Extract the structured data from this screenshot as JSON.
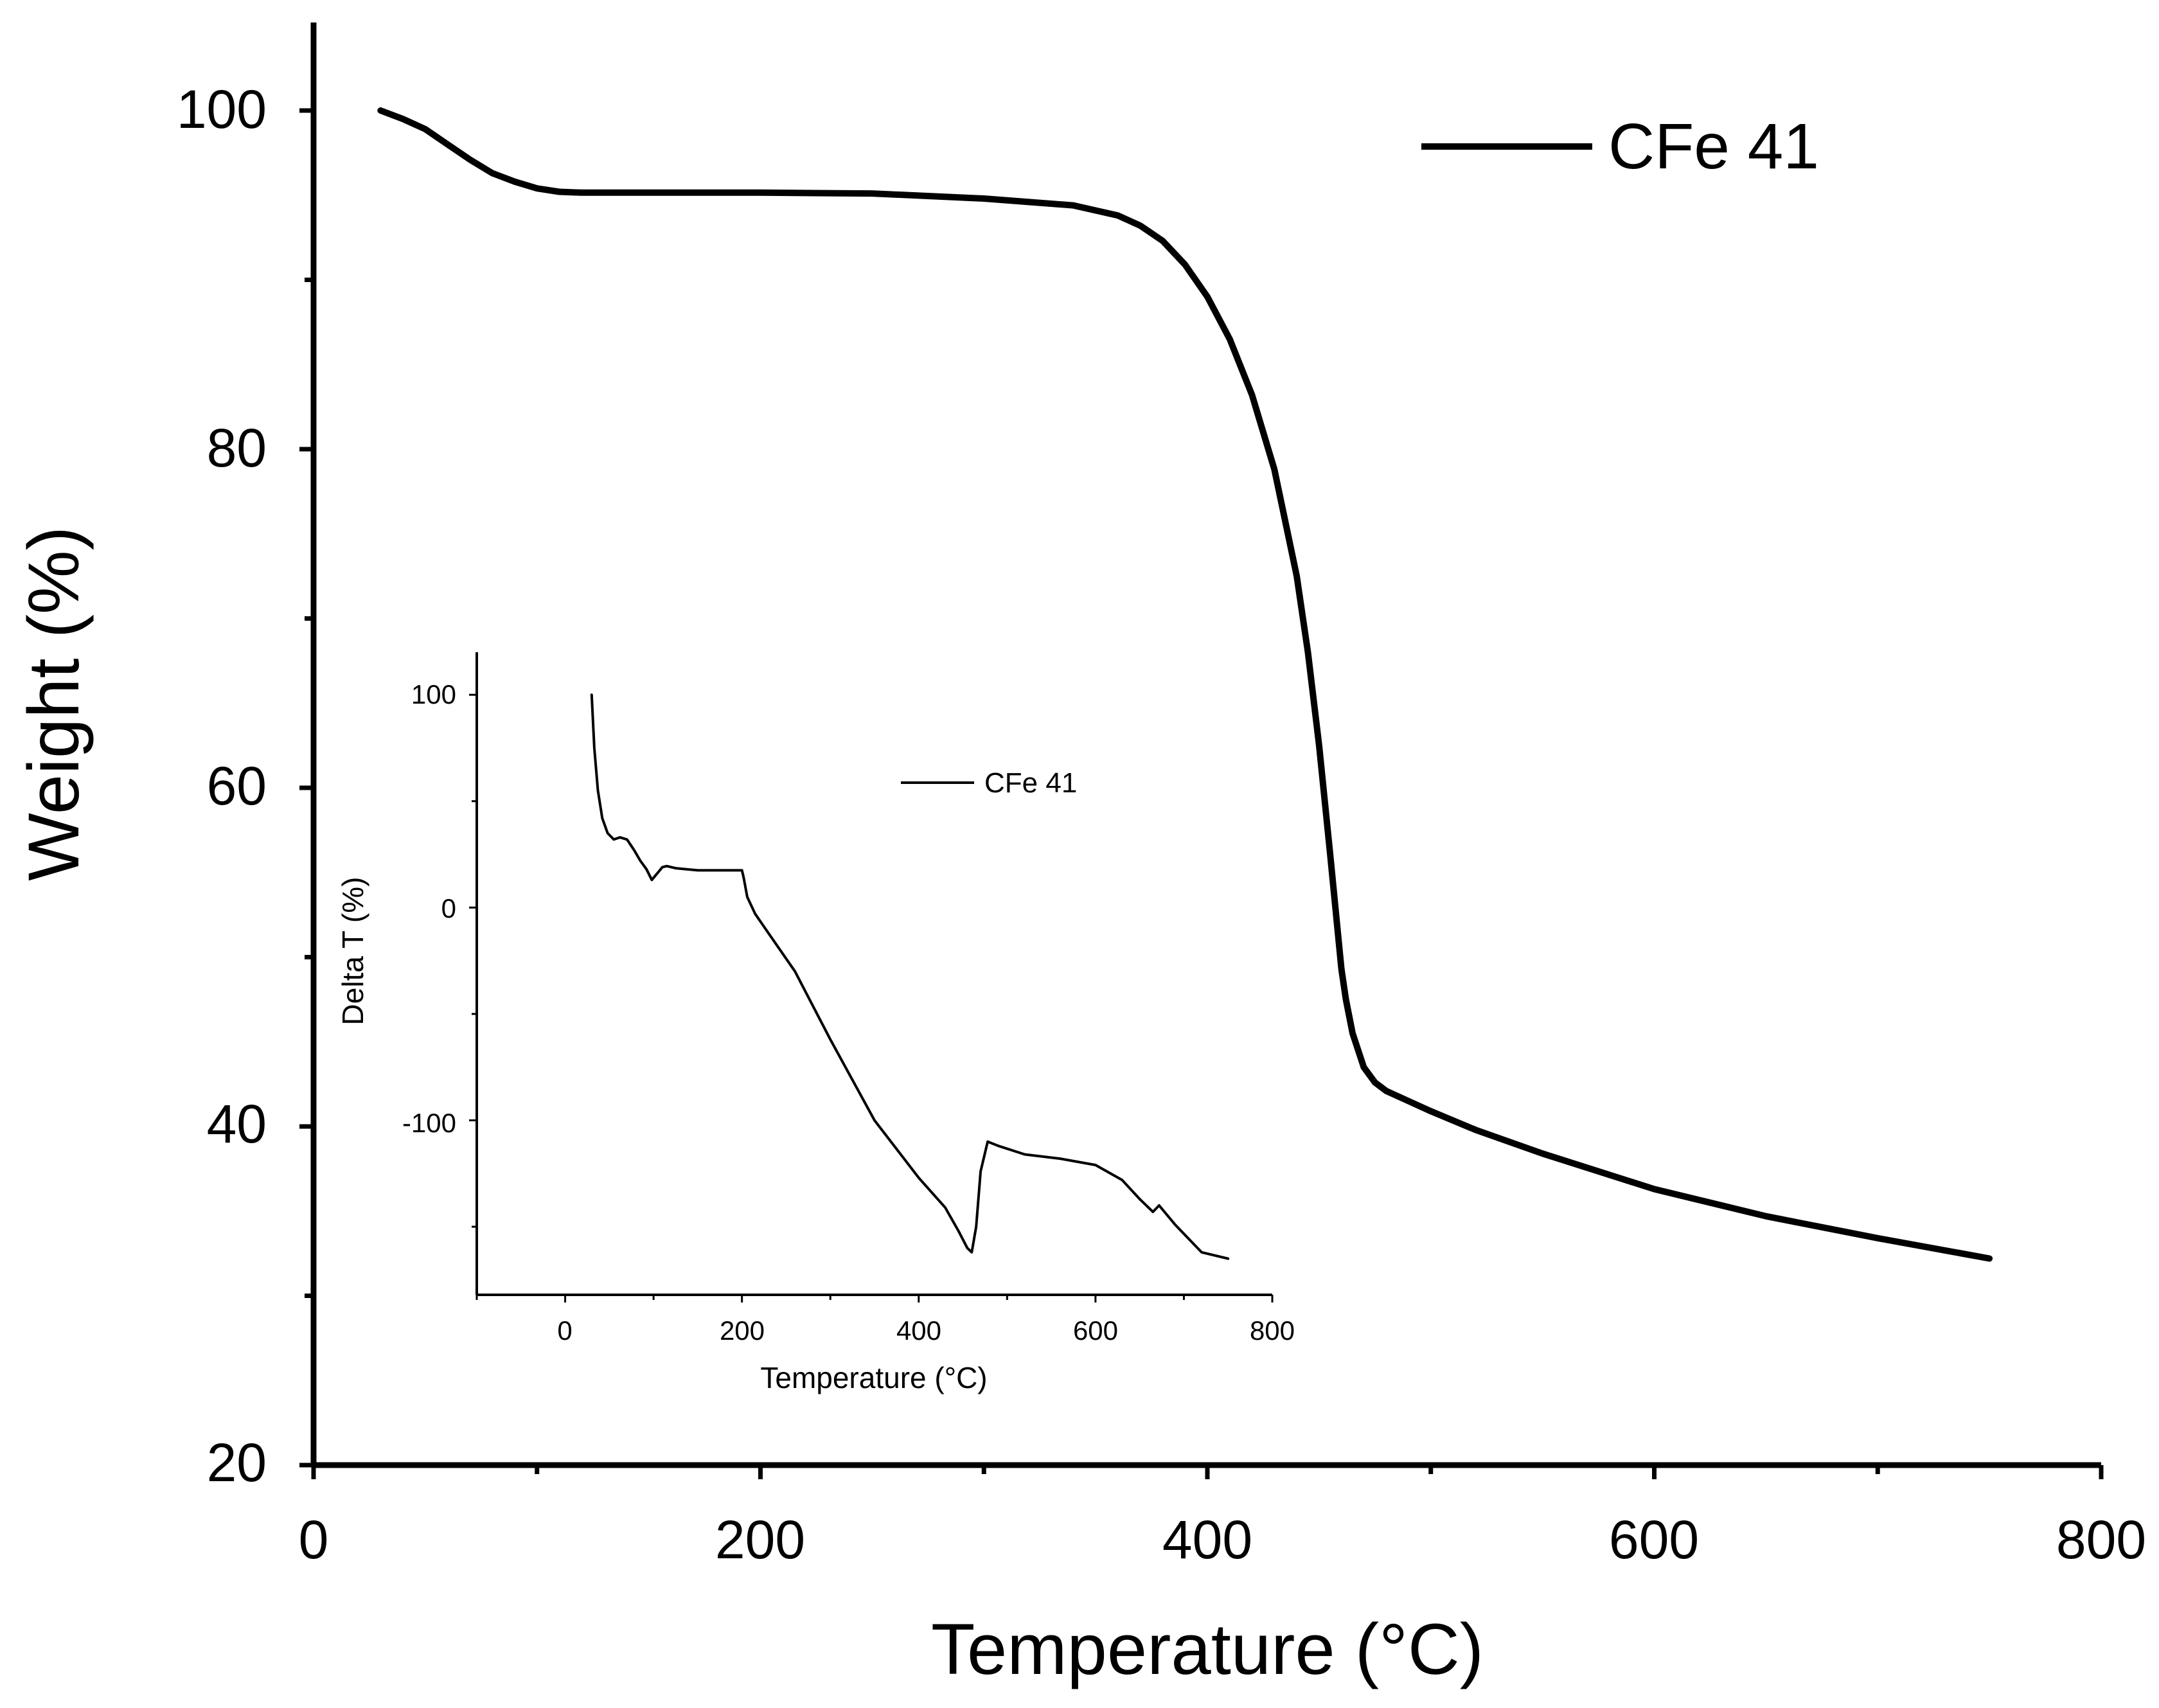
{
  "chart_data": [
    {
      "id": "main",
      "type": "line",
      "title": "",
      "xlabel": "Temperature (°C)",
      "ylabel": "Weight (%)",
      "xlim": [
        0,
        800
      ],
      "ylim": [
        20,
        105
      ],
      "x_ticks": [
        0,
        200,
        400,
        600,
        800
      ],
      "x_ticks_labels": [
        "0",
        "200",
        "400",
        "600",
        "800"
      ],
      "y_ticks": [
        20,
        40,
        60,
        80,
        100
      ],
      "y_ticks_labels": [
        "20",
        "40",
        "60",
        "80",
        "100"
      ],
      "x_minor_ticks": [
        100,
        300,
        500,
        700
      ],
      "y_minor_ticks": [
        30,
        50,
        70,
        90
      ],
      "legend": {
        "position": "top-right",
        "entries": [
          "CFe 41"
        ]
      },
      "series": [
        {
          "name": "CFe 41",
          "color": "#000000",
          "x": [
            30,
            40,
            50,
            60,
            70,
            80,
            90,
            100,
            110,
            120,
            140,
            160,
            200,
            250,
            300,
            340,
            360,
            370,
            380,
            390,
            400,
            410,
            420,
            430,
            440,
            445,
            450,
            455,
            460,
            462,
            465,
            470,
            475,
            480,
            490,
            500,
            520,
            550,
            600,
            650,
            700,
            750
          ],
          "y": [
            100,
            99.5,
            98.9,
            98,
            97.1,
            96.3,
            95.8,
            95.4,
            95.2,
            95.15,
            95.15,
            95.15,
            95.15,
            95.1,
            94.8,
            94.4,
            93.8,
            93.2,
            92.3,
            90.9,
            89,
            86.5,
            83.2,
            78.8,
            72.5,
            68,
            62.5,
            56,
            49.3,
            47.5,
            45.5,
            43.5,
            42.6,
            42.1,
            41.5,
            40.9,
            39.8,
            38.4,
            36.3,
            34.7,
            33.4,
            32.2
          ]
        }
      ]
    },
    {
      "id": "inset",
      "type": "line",
      "title": "",
      "xlabel": "Temperature (°C)",
      "ylabel": "Delta T (%)",
      "xlim": [
        -100,
        800
      ],
      "ylim": [
        -182,
        120
      ],
      "x_ticks": [
        0,
        200,
        400,
        600,
        800
      ],
      "x_ticks_labels": [
        "0",
        "200",
        "400",
        "600",
        "800"
      ],
      "y_ticks": [
        100,
        0,
        -100
      ],
      "y_ticks_labels": [
        "100",
        "0",
        "-100"
      ],
      "x_minor_ticks": [
        -100,
        100,
        300,
        500,
        700
      ],
      "y_minor_ticks": [
        50,
        -50,
        -150
      ],
      "legend": {
        "position": "top-center",
        "entries": [
          "CFe 41"
        ]
      },
      "series": [
        {
          "name": "CFe 41",
          "color": "#000000",
          "x": [
            30,
            33,
            37,
            42,
            48,
            55,
            62,
            70,
            78,
            85,
            92,
            98,
            102,
            106,
            110,
            115,
            125,
            150,
            180,
            200,
            202,
            206,
            215,
            230,
            260,
            300,
            350,
            400,
            430,
            445,
            455,
            460,
            465,
            470,
            478,
            490,
            520,
            560,
            600,
            630,
            650,
            665,
            672,
            678,
            690,
            720,
            750
          ],
          "y": [
            100,
            75,
            55,
            42,
            35,
            32,
            33,
            32,
            27,
            22,
            18,
            13,
            15,
            17,
            19,
            19.5,
            18.5,
            17.5,
            17.5,
            17.5,
            14,
            5,
            -3,
            -12,
            -30,
            -62,
            -100,
            -127,
            -141,
            -152,
            -160,
            -162,
            -150,
            -124,
            -110,
            -112,
            -116,
            -118,
            -121,
            -128,
            -137,
            -143,
            -140,
            -143,
            -149,
            -162,
            -165
          ]
        }
      ]
    }
  ]
}
